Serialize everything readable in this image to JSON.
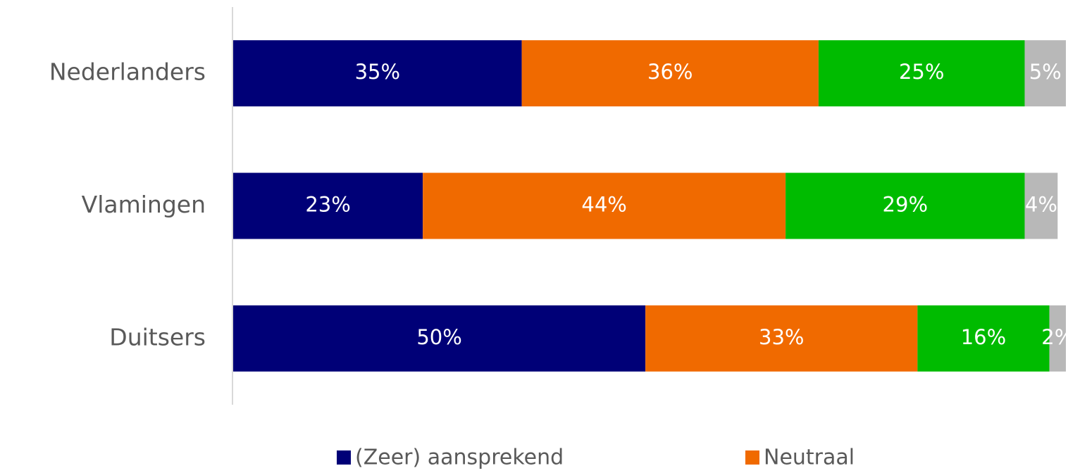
{
  "chart_data": {
    "type": "stacked-bar-horizontal",
    "categories": [
      "Nederlanders",
      "Vlamingen",
      "Duitsers"
    ],
    "series": [
      {
        "name": "(Zeer) aansprekend",
        "color": "#000077",
        "values": [
          35,
          23,
          50
        ],
        "value_labels": [
          "35%",
          "23%",
          "50%"
        ]
      },
      {
        "name": "Neutraal",
        "color": "#f06a00",
        "values": [
          36,
          44,
          33
        ],
        "value_labels": [
          "36%",
          "44%",
          "33%"
        ]
      },
      {
        "color": "#00bb00",
        "values": [
          25,
          29,
          16
        ],
        "value_labels": [
          "25%",
          "29%",
          "16%"
        ]
      },
      {
        "color": "#b8b8b8",
        "values": [
          5,
          4,
          2
        ],
        "value_labels": [
          "5%",
          "4%",
          "2%"
        ]
      }
    ],
    "xlim": [
      0,
      101
    ]
  }
}
